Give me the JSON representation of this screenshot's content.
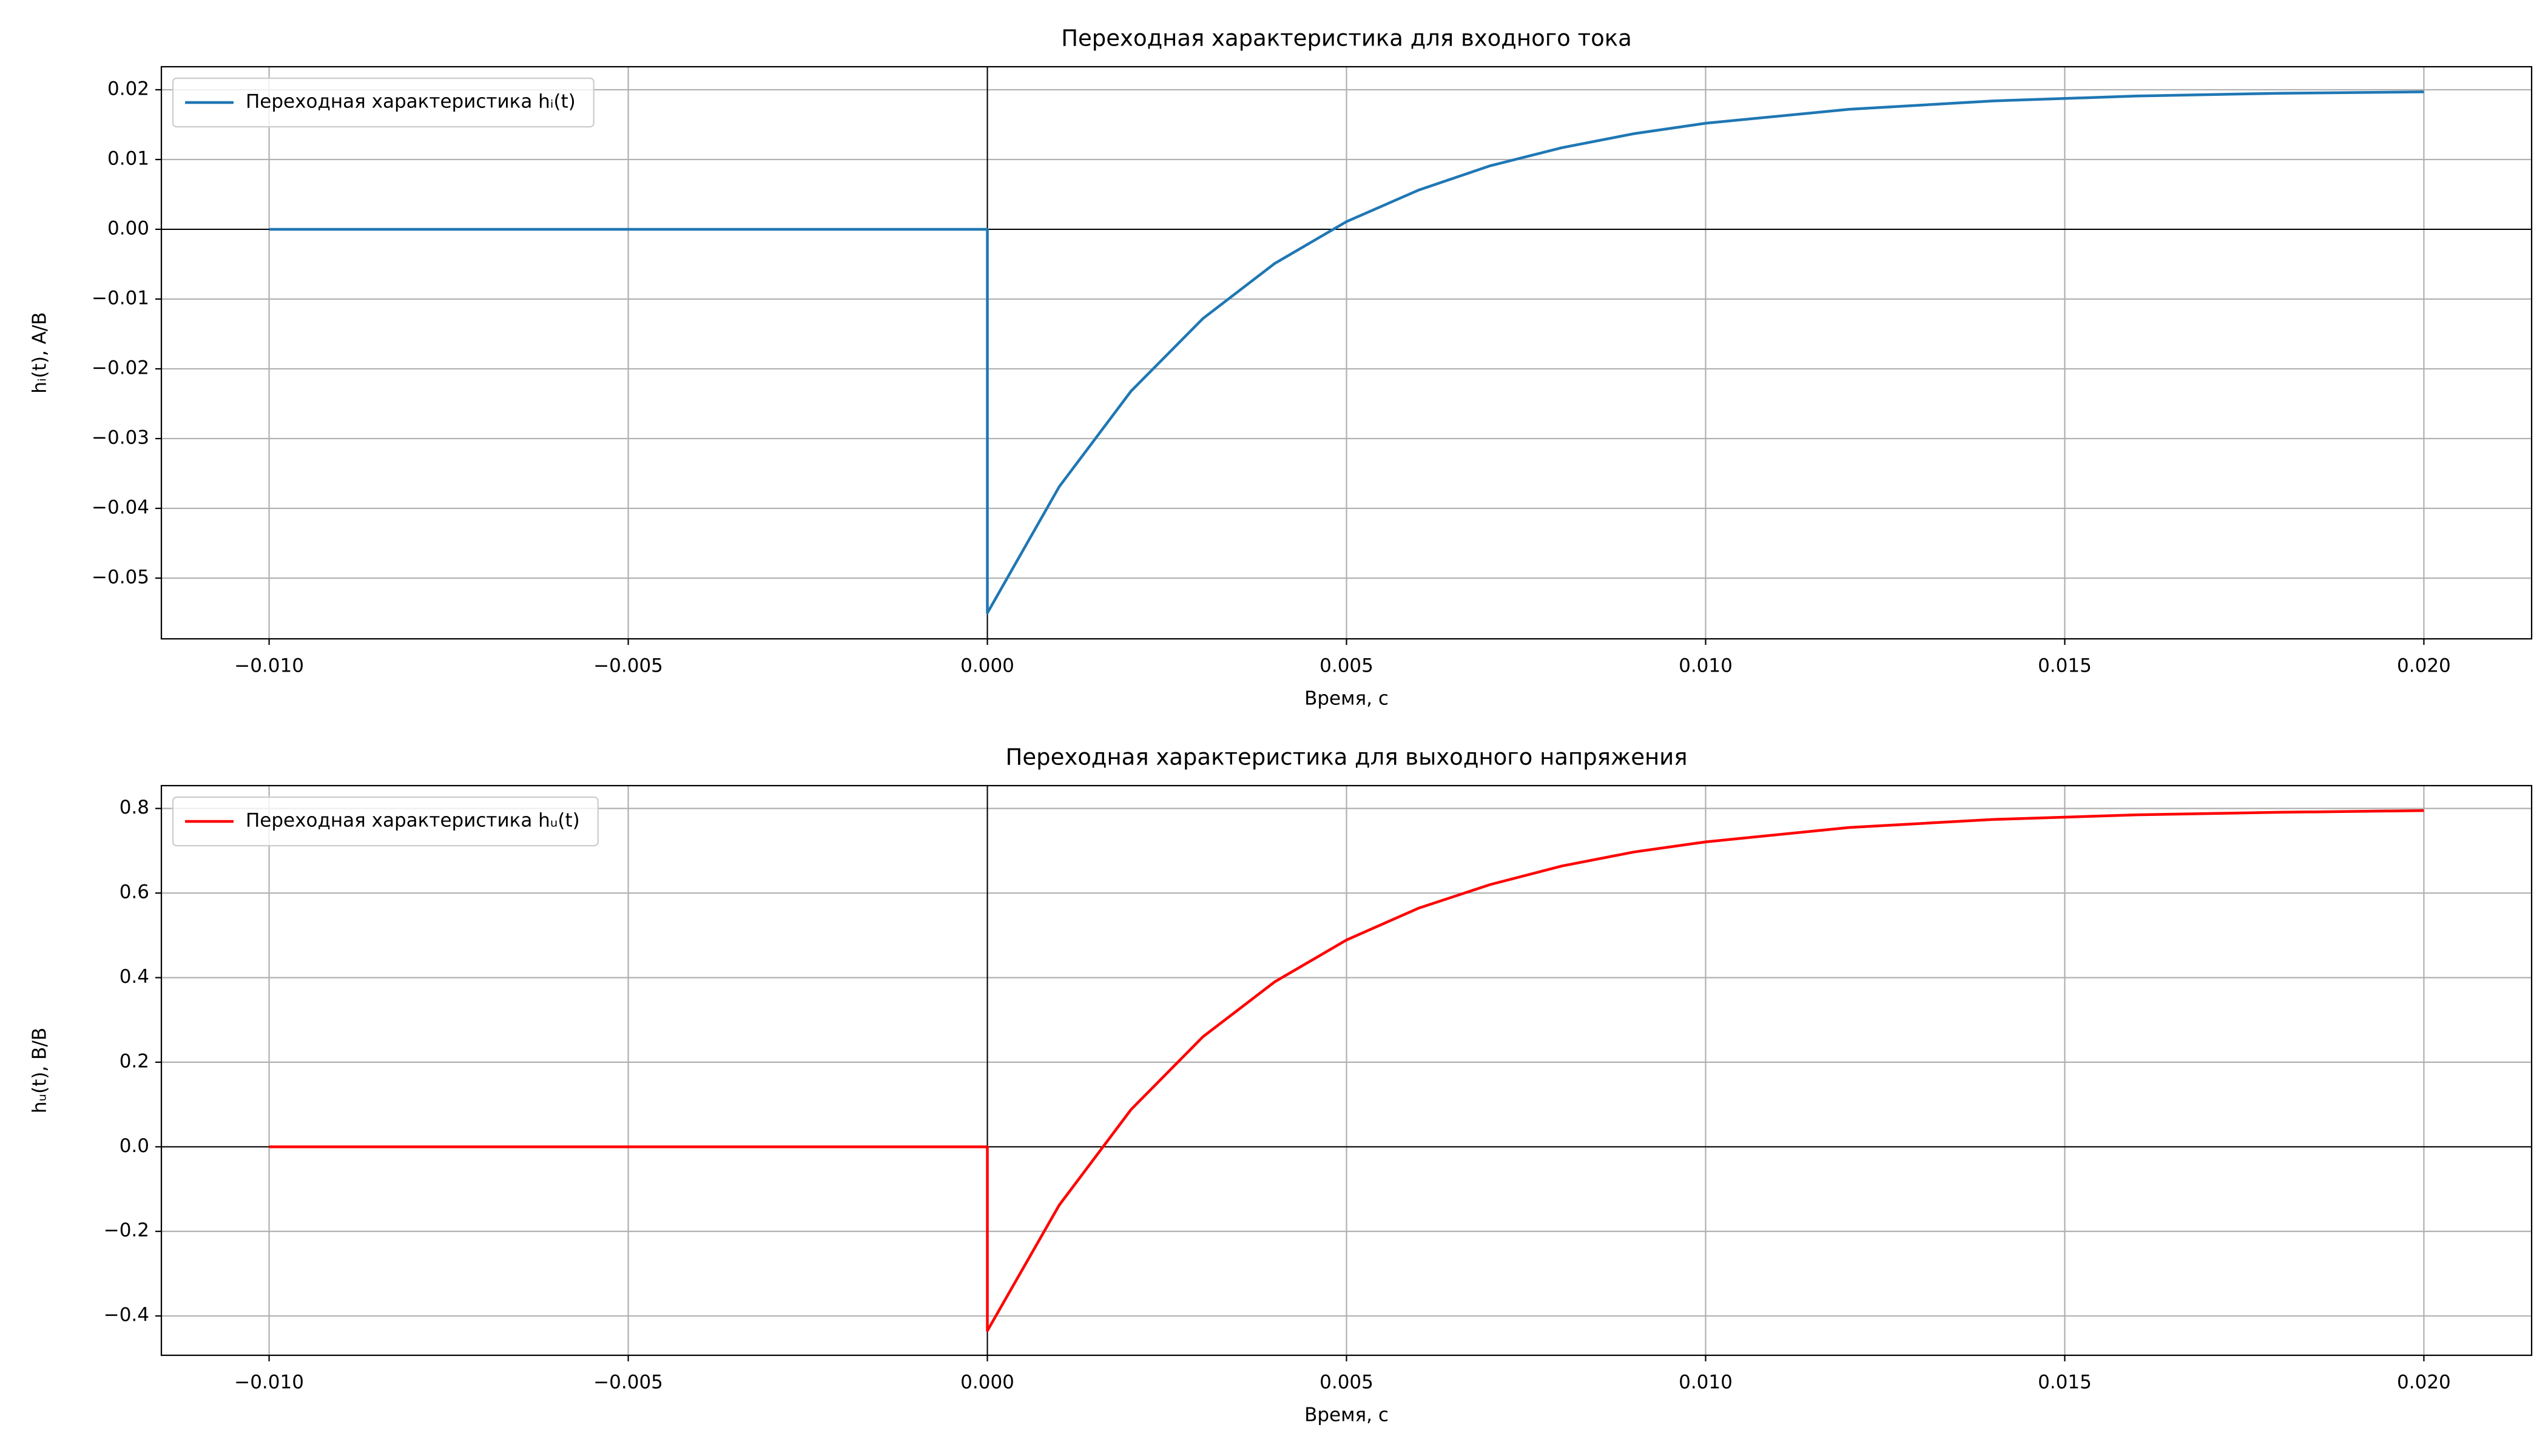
{
  "chart_data": [
    {
      "type": "line",
      "title": "Переходная характеристика для входного тока",
      "x_label": "Время, с",
      "y_label": "hᵢ(t), А/В",
      "x": [
        -0.01,
        0,
        0,
        0.001,
        0.002,
        0.003,
        0.004,
        0.005,
        0.006,
        0.007,
        0.008,
        0.009,
        0.01,
        0.012,
        0.014,
        0.016,
        0.018,
        0.02
      ],
      "series": [
        {
          "name": "Переходная характеристика hᵢ(t)",
          "color": "#1f77b4",
          "values": [
            0,
            0,
            -0.055,
            -0.0369,
            -0.0232,
            -0.0128,
            -0.0049,
            0.0011,
            0.0056,
            0.0091,
            0.0117,
            0.0137,
            0.0152,
            0.0172,
            0.0184,
            0.0191,
            0.0195,
            0.0197
          ]
        }
      ],
      "xlim": [
        -0.0115,
        0.0215
      ],
      "xticks": [
        {
          "value": -0.01,
          "label": "−0.010"
        },
        {
          "value": -0.005,
          "label": "−0.005"
        },
        {
          "value": 0,
          "label": "0.000"
        },
        {
          "value": 0.005,
          "label": "0.005"
        },
        {
          "value": 0.01,
          "label": "0.010"
        },
        {
          "value": 0.015,
          "label": "0.015"
        },
        {
          "value": 0.02,
          "label": "0.020"
        }
      ],
      "ylim": [
        -0.0587,
        0.0233
      ],
      "yticks": [
        {
          "value": -0.05,
          "label": "−0.05"
        },
        {
          "value": -0.04,
          "label": "−0.04"
        },
        {
          "value": -0.03,
          "label": "−0.03"
        },
        {
          "value": -0.02,
          "label": "−0.02"
        },
        {
          "value": -0.01,
          "label": "−0.01"
        },
        {
          "value": 0,
          "label": "0.00"
        },
        0.01,
        0.02
      ],
      "grid": true,
      "zero_lines": true,
      "legend": "upper left"
    },
    {
      "type": "line",
      "title": "Переходная характеристика для выходного напряжения",
      "x_label": "Время, с",
      "y_label": "hᵤ(t), В/В",
      "x": [
        -0.01,
        0,
        0,
        0.001,
        0.002,
        0.003,
        0.004,
        0.005,
        0.006,
        0.007,
        0.008,
        0.009,
        0.01,
        0.012,
        0.014,
        0.016,
        0.018,
        0.02
      ],
      "series": [
        {
          "name": "Переходная характеристика hᵤ(t)",
          "color": "#ff0000",
          "values": [
            0,
            0,
            -0.435,
            -0.138,
            0.088,
            0.26,
            0.39,
            0.489,
            0.564,
            0.62,
            0.664,
            0.697,
            0.721,
            0.755,
            0.774,
            0.785,
            0.791,
            0.795
          ]
        }
      ],
      "xlim": [
        -0.0115,
        0.0215
      ],
      "xticks": [
        {
          "value": -0.01,
          "label": "−0.010"
        },
        {
          "value": -0.005,
          "label": "−0.005"
        },
        {
          "value": 0,
          "label": "0.000"
        },
        {
          "value": 0.005,
          "label": "0.005"
        },
        {
          "value": 0.01,
          "label": "0.010"
        },
        {
          "value": 0.015,
          "label": "0.015"
        },
        {
          "value": 0.02,
          "label": "0.020"
        }
      ],
      "ylim": [
        -0.493,
        0.854
      ],
      "yticks": [
        {
          "value": -0.4,
          "label": "−0.4"
        },
        {
          "value": -0.2,
          "label": "−0.2"
        },
        {
          "value": 0,
          "label": "0.0"
        },
        0.2,
        0.4,
        0.6,
        0.8
      ],
      "grid": true,
      "zero_lines": true,
      "legend": "upper left"
    }
  ]
}
